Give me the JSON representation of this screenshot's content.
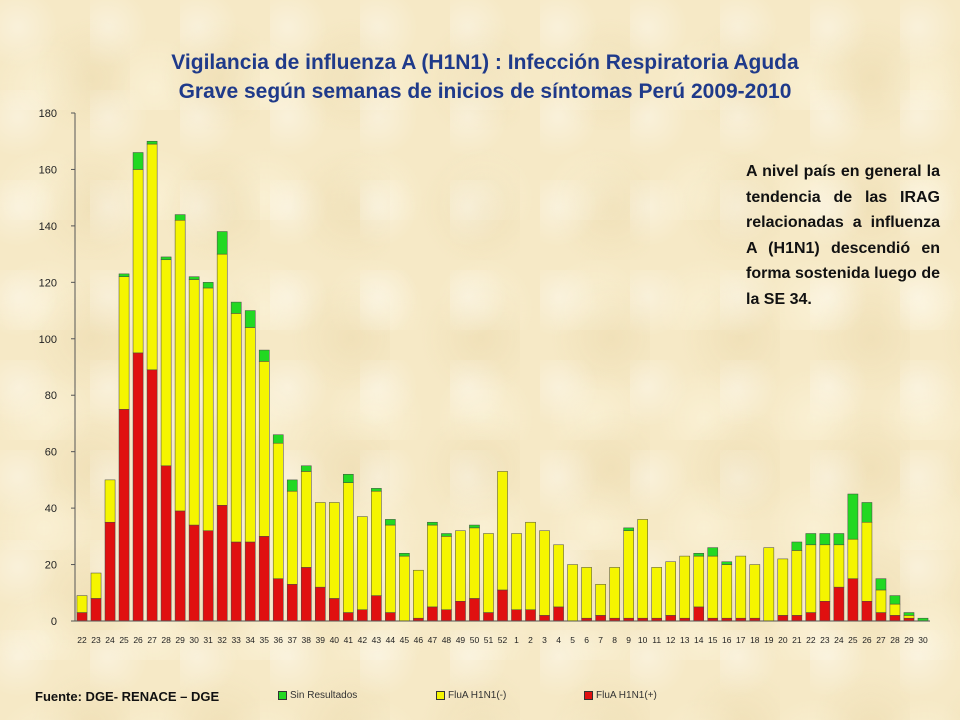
{
  "title": {
    "line1": "Vigilancia de influenza A (H1N1) : Infección Respiratoria Aguda",
    "line2": "Grave según semanas de inicios de síntomas Perú 2009-2010"
  },
  "annotation": "A nivel país en general la tendencia de las IRAG relacionadas a influenza A (H1N1) descendió en forma sostenida luego de la SE 34.",
  "source": "Fuente: DGE- RENACE – DGE",
  "colors": {
    "positive": "#e01010",
    "negative": "#f5f500",
    "no_result": "#22d822",
    "title": "#1f3a8a"
  },
  "chart_data": {
    "type": "bar",
    "stacked": true,
    "ylim": [
      0,
      180
    ],
    "yticks": [
      0,
      20,
      40,
      60,
      80,
      100,
      120,
      140,
      160,
      180
    ],
    "grid": false,
    "legend_position": "bottom",
    "categories": [
      "22",
      "23",
      "24",
      "25",
      "26",
      "27",
      "28",
      "29",
      "30",
      "31",
      "32",
      "33",
      "34",
      "35",
      "36",
      "37",
      "38",
      "39",
      "40",
      "41",
      "42",
      "43",
      "44",
      "45",
      "46",
      "47",
      "48",
      "49",
      "50",
      "51",
      "52",
      "1",
      "2",
      "3",
      "4",
      "5",
      "6",
      "7",
      "8",
      "9",
      "10",
      "11",
      "12",
      "13",
      "14",
      "15",
      "16",
      "17",
      "18",
      "19",
      "20",
      "21",
      "22",
      "23",
      "24",
      "25",
      "26",
      "27",
      "28",
      "29",
      "30"
    ],
    "series": [
      {
        "name": "FluA H1N1(+)",
        "color": "#e01010",
        "values": [
          3,
          8,
          35,
          75,
          95,
          89,
          55,
          39,
          34,
          32,
          41,
          28,
          28,
          30,
          15,
          13,
          19,
          12,
          8,
          3,
          4,
          9,
          3,
          0,
          1,
          5,
          4,
          7,
          8,
          3,
          11,
          4,
          4,
          2,
          5,
          0,
          1,
          2,
          1,
          1,
          1,
          1,
          2,
          1,
          5,
          1,
          1,
          1,
          1,
          0,
          2,
          2,
          3,
          7,
          12,
          15,
          7,
          3,
          2,
          1,
          0
        ]
      },
      {
        "name": "FluA H1N1(-)",
        "color": "#f5f500",
        "values": [
          6,
          9,
          15,
          47,
          65,
          80,
          73,
          103,
          87,
          86,
          89,
          81,
          76,
          62,
          48,
          33,
          34,
          30,
          34,
          46,
          33,
          37,
          31,
          23,
          17,
          29,
          26,
          25,
          25,
          28,
          42,
          27,
          31,
          30,
          22,
          20,
          18,
          11,
          18,
          31,
          35,
          18,
          19,
          22,
          18,
          22,
          19,
          22,
          19,
          26,
          20,
          23,
          24,
          20,
          15,
          14,
          28,
          8,
          4,
          1,
          0
        ]
      },
      {
        "name": "Sin Resultados",
        "color": "#22d822",
        "values": [
          0,
          0,
          0,
          1,
          6,
          1,
          1,
          2,
          1,
          2,
          8,
          4,
          6,
          4,
          3,
          4,
          2,
          0,
          0,
          3,
          0,
          1,
          2,
          1,
          0,
          1,
          1,
          0,
          1,
          0,
          0,
          0,
          0,
          0,
          0,
          0,
          0,
          0,
          0,
          1,
          0,
          0,
          0,
          0,
          1,
          3,
          1,
          0,
          0,
          0,
          0,
          3,
          4,
          4,
          4,
          16,
          7,
          4,
          3,
          1,
          1
        ]
      }
    ],
    "legend": [
      {
        "label": "Sin Resultados",
        "color": "#22d822"
      },
      {
        "label": "FluA H1N1(-)",
        "color": "#f5f500"
      },
      {
        "label": "FluA H1N1(+)",
        "color": "#e01010"
      }
    ]
  }
}
